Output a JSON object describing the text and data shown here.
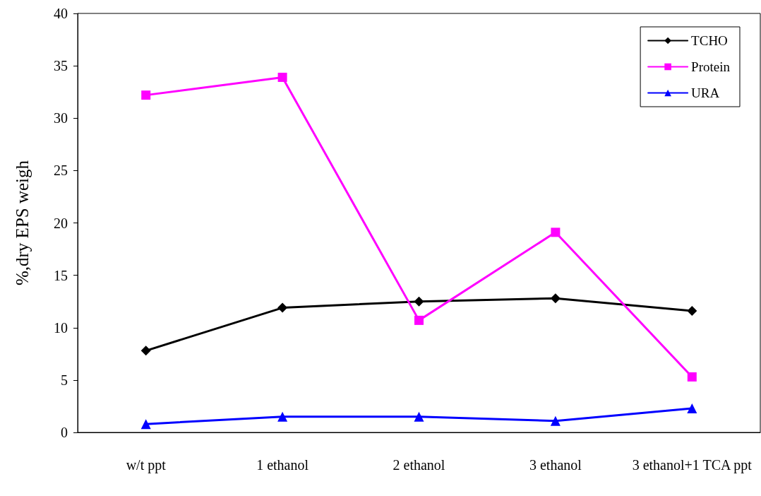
{
  "chart_data": {
    "type": "line",
    "ylabel": "%,dry EPS weigh",
    "categories": [
      "w/t ppt",
      "1 ethanol",
      "2 ethanol",
      "3 ethanol",
      "3 ethanol+1 TCA ppt"
    ],
    "series": [
      {
        "name": "TCHO",
        "color": "#000000",
        "marker": "diamond",
        "values": [
          7.8,
          11.9,
          12.5,
          12.8,
          11.6
        ]
      },
      {
        "name": "Protein",
        "color": "#ff00ff",
        "marker": "square",
        "values": [
          32.2,
          33.9,
          10.7,
          19.1,
          5.3
        ]
      },
      {
        "name": "URA",
        "color": "#0000ff",
        "marker": "triangle",
        "values": [
          0.8,
          1.5,
          1.5,
          1.1,
          2.3
        ]
      }
    ],
    "ylim": [
      0,
      40
    ],
    "yticks": [
      0,
      5,
      10,
      15,
      20,
      25,
      30,
      35,
      40
    ],
    "grid": false,
    "legend": "top right",
    "line_style": "solid"
  }
}
